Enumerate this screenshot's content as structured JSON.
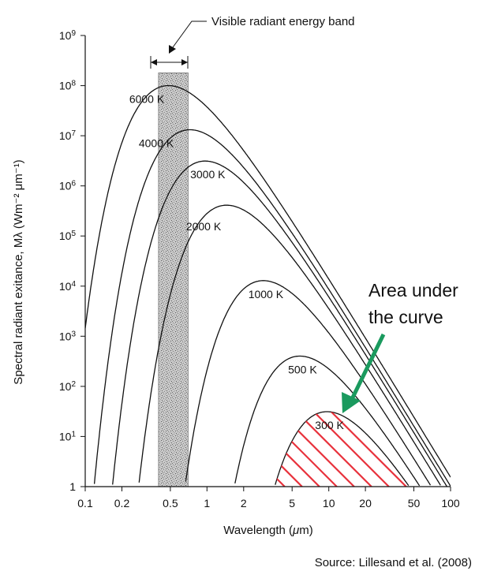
{
  "chart_data": {
    "type": "line",
    "title": "",
    "xlabel_text": "Wavelength (",
    "xlabel_symbol": "μ",
    "xlabel_unit": "m)",
    "ylabel": "Spectral radiant exitance, Mλ (Wm⁻² μm⁻¹)",
    "x_scale": "log",
    "y_scale": "log",
    "xlim": [
      0.1,
      100
    ],
    "ylim": [
      1,
      1000000000
    ],
    "x_ticks": [
      {
        "value": 0.1,
        "label": "0.1"
      },
      {
        "value": 0.2,
        "label": "0.2"
      },
      {
        "value": 0.5,
        "label": "0.5"
      },
      {
        "value": 1,
        "label": "1"
      },
      {
        "value": 2,
        "label": "2"
      },
      {
        "value": 5,
        "label": "5"
      },
      {
        "value": 10,
        "label": "10"
      },
      {
        "value": 20,
        "label": "20"
      },
      {
        "value": 50,
        "label": "50"
      },
      {
        "value": 100,
        "label": "100"
      }
    ],
    "y_ticks": [
      {
        "value": 1,
        "base": "1",
        "exp": ""
      },
      {
        "value": 10,
        "base": "10",
        "exp": "1"
      },
      {
        "value": 100,
        "base": "10",
        "exp": "2"
      },
      {
        "value": 1000,
        "base": "10",
        "exp": "3"
      },
      {
        "value": 10000,
        "base": "10",
        "exp": "4"
      },
      {
        "value": 100000,
        "base": "10",
        "exp": "5"
      },
      {
        "value": 1000000,
        "base": "10",
        "exp": "6"
      },
      {
        "value": 10000000,
        "base": "10",
        "exp": "7"
      },
      {
        "value": 100000000,
        "base": "10",
        "exp": "8"
      },
      {
        "value": 1000000000,
        "base": "10",
        "exp": "9"
      }
    ],
    "series": [
      {
        "name": "6000 K",
        "temperature": 6000
      },
      {
        "name": "4000 K",
        "temperature": 4000
      },
      {
        "name": "3000 K",
        "temperature": 3000
      },
      {
        "name": "2000 K",
        "temperature": 2000
      },
      {
        "name": "1000 K",
        "temperature": 1000
      },
      {
        "name": "500 K",
        "temperature": 500
      },
      {
        "name": "300 K",
        "temperature": 300
      }
    ],
    "visible_band": {
      "label": "Visible radiant energy band",
      "x_range": [
        0.4,
        0.7
      ]
    },
    "shaded_series": "300 K",
    "shade_color": "#e8323c"
  },
  "annotation": {
    "line1": "Area under",
    "line2": "the curve",
    "arrow_color": "#1a9a5e"
  },
  "source": "Source: Lillesand et al. (2008)"
}
